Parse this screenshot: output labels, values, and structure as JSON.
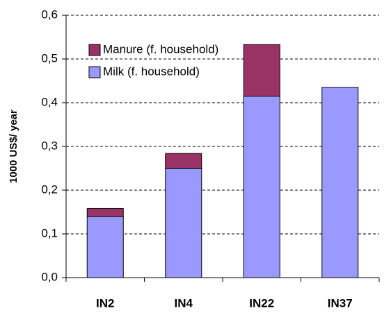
{
  "chart_data": {
    "type": "stacked_bar",
    "y_label": "1000 US$/ year",
    "categories": [
      "IN2",
      "IN4",
      "IN22",
      "IN37"
    ],
    "series": [
      {
        "name": "Milk (f. household)",
        "color": "#9999ff",
        "values": [
          0.14,
          0.25,
          0.415,
          0.435
        ]
      },
      {
        "name": "Manure (f. household)",
        "color": "#993366",
        "values": [
          0.018,
          0.034,
          0.118,
          0
        ]
      }
    ],
    "ylim": [
      0,
      0.6
    ],
    "yticks": [
      {
        "value": 0,
        "label": "0,0"
      },
      {
        "value": 0.1,
        "label": "0,1"
      },
      {
        "value": 0.2,
        "label": "0,2"
      },
      {
        "value": 0.3,
        "label": "0,3"
      },
      {
        "value": 0.4,
        "label": "0,4"
      },
      {
        "value": 0.5,
        "label": "0,5"
      },
      {
        "value": 0.6,
        "label": "0,6"
      }
    ],
    "grid": true
  }
}
